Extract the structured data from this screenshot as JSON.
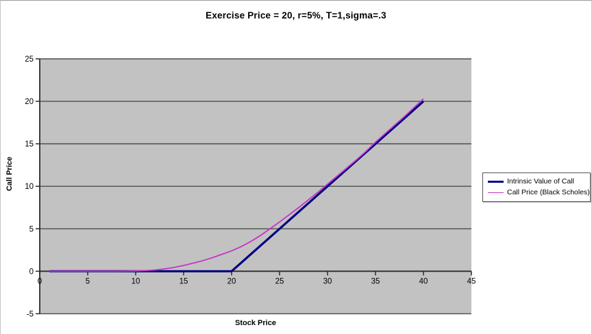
{
  "chart": {
    "title": "Exercise Price = 20, r=5%, T=1,sigma=.3",
    "x_axis_title": "Stock Price",
    "y_axis_title": "Call Price"
  },
  "chart_data": {
    "type": "line",
    "title": "Exercise Price = 20, r=5%, T=1,sigma=.3",
    "xlabel": "Stock Price",
    "ylabel": "Call Price",
    "xlim": [
      0,
      45
    ],
    "ylim": [
      -5,
      25
    ],
    "xticks": [
      0,
      5,
      10,
      15,
      20,
      25,
      30,
      35,
      40,
      45
    ],
    "yticks": [
      -5,
      0,
      5,
      10,
      15,
      20,
      25
    ],
    "grid": "horizontal-only",
    "legend_position": "right-outside",
    "plot_background": "#c2c2c2",
    "gridline_color": "#4d4d4d",
    "axis_color": "#2b2b2b",
    "x": [
      1,
      2,
      3,
      4,
      5,
      6,
      7,
      8,
      9,
      10,
      11,
      12,
      13,
      14,
      15,
      16,
      17,
      18,
      19,
      20,
      21,
      22,
      23,
      24,
      25,
      26,
      27,
      28,
      29,
      30,
      31,
      32,
      33,
      34,
      35,
      36,
      37,
      38,
      39,
      40
    ],
    "series": [
      {
        "name": "Intrinsic Value of Call",
        "color": "#000080",
        "stroke_width": 3.2,
        "values": [
          0,
          0,
          0,
          0,
          0,
          0,
          0,
          0,
          0,
          0,
          0,
          0,
          0,
          0,
          0,
          0,
          0,
          0,
          0,
          0,
          1,
          2,
          3,
          4,
          5,
          6,
          7,
          8,
          9,
          10,
          11,
          12,
          13,
          14,
          15,
          16,
          17,
          18,
          19,
          20
        ]
      },
      {
        "name": "Call Price (Black Scholes)",
        "color": "#c633c6",
        "stroke_width": 1.8,
        "values": [
          0,
          0,
          0,
          0,
          0,
          0,
          0,
          0,
          0.01,
          0.03,
          0.08,
          0.15,
          0.28,
          0.45,
          0.68,
          0.95,
          1.25,
          1.6,
          2,
          2.4,
          2.9,
          3.5,
          4.2,
          5,
          5.8,
          6.65,
          7.5,
          8.4,
          9.3,
          10.25,
          11.2,
          12.15,
          13.1,
          14.1,
          15.2,
          16.2,
          17.2,
          18.2,
          19.25,
          20.3
        ]
      }
    ]
  }
}
